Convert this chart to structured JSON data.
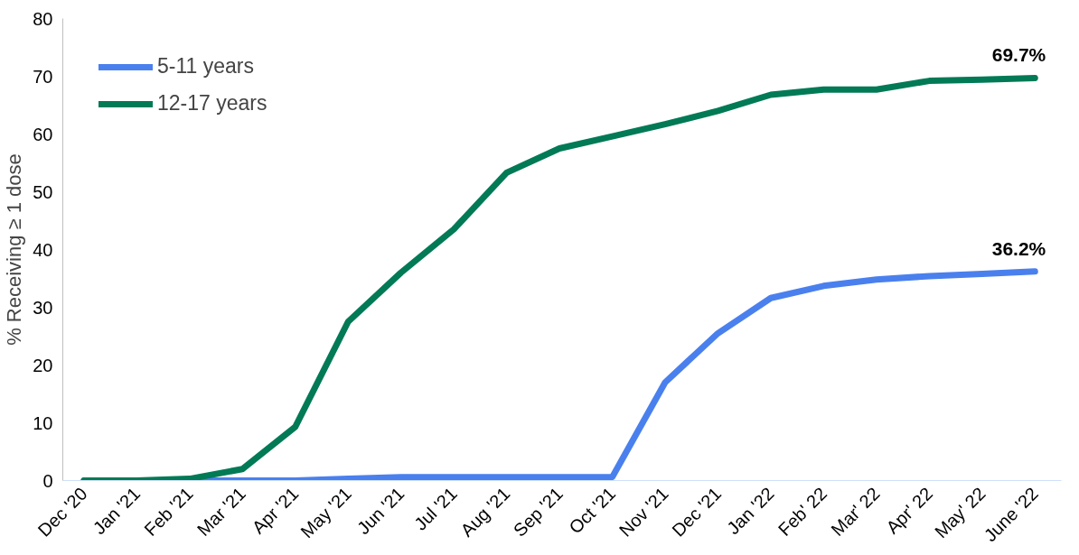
{
  "chart_data": {
    "type": "line",
    "ylabel": "% Receiving ≥ 1 dose",
    "categories": [
      "Dec '20",
      "Jan '21",
      "Feb '21",
      "Mar '21",
      "Apr '21",
      "May '21",
      "Jun '21",
      "Jul '21",
      "Aug '21",
      "Sep '21",
      "Oct '21",
      "Nov '21",
      "Dec '21",
      "Jan '22",
      "Feb' 22",
      "Mar' 22",
      "Apr' 22",
      "May' 22",
      "June '22"
    ],
    "series": [
      {
        "name": "5-11 years",
        "color": "#4a80ee",
        "values": [
          0,
          0,
          0,
          0,
          0,
          0.3,
          0.6,
          0.6,
          0.6,
          0.6,
          0.6,
          17,
          25.5,
          31.6,
          33.7,
          34.8,
          35.4,
          35.8,
          36.2
        ],
        "value_labels": [
          null,
          null,
          null,
          null,
          null,
          null,
          null,
          null,
          null,
          null,
          null,
          null,
          null,
          null,
          null,
          null,
          null,
          null,
          "36.2%"
        ]
      },
      {
        "name": "12-17 years",
        "color": "#017a55",
        "values": [
          0,
          0,
          0.3,
          2,
          9.3,
          27.5,
          36,
          43.5,
          53.3,
          57.5,
          59.6,
          61.7,
          64,
          66.8,
          67.7,
          67.7,
          69.2,
          69.4,
          69.7
        ],
        "value_labels": [
          null,
          null,
          null,
          null,
          null,
          null,
          null,
          null,
          null,
          null,
          null,
          null,
          null,
          null,
          null,
          null,
          null,
          null,
          "69.7%"
        ]
      }
    ],
    "ylim": [
      0,
      80
    ],
    "yticks": [
      0,
      10,
      20,
      30,
      40,
      50,
      60,
      70,
      80
    ],
    "grid": false,
    "legend": "top left",
    "marker": "none",
    "line_style": "solid"
  }
}
